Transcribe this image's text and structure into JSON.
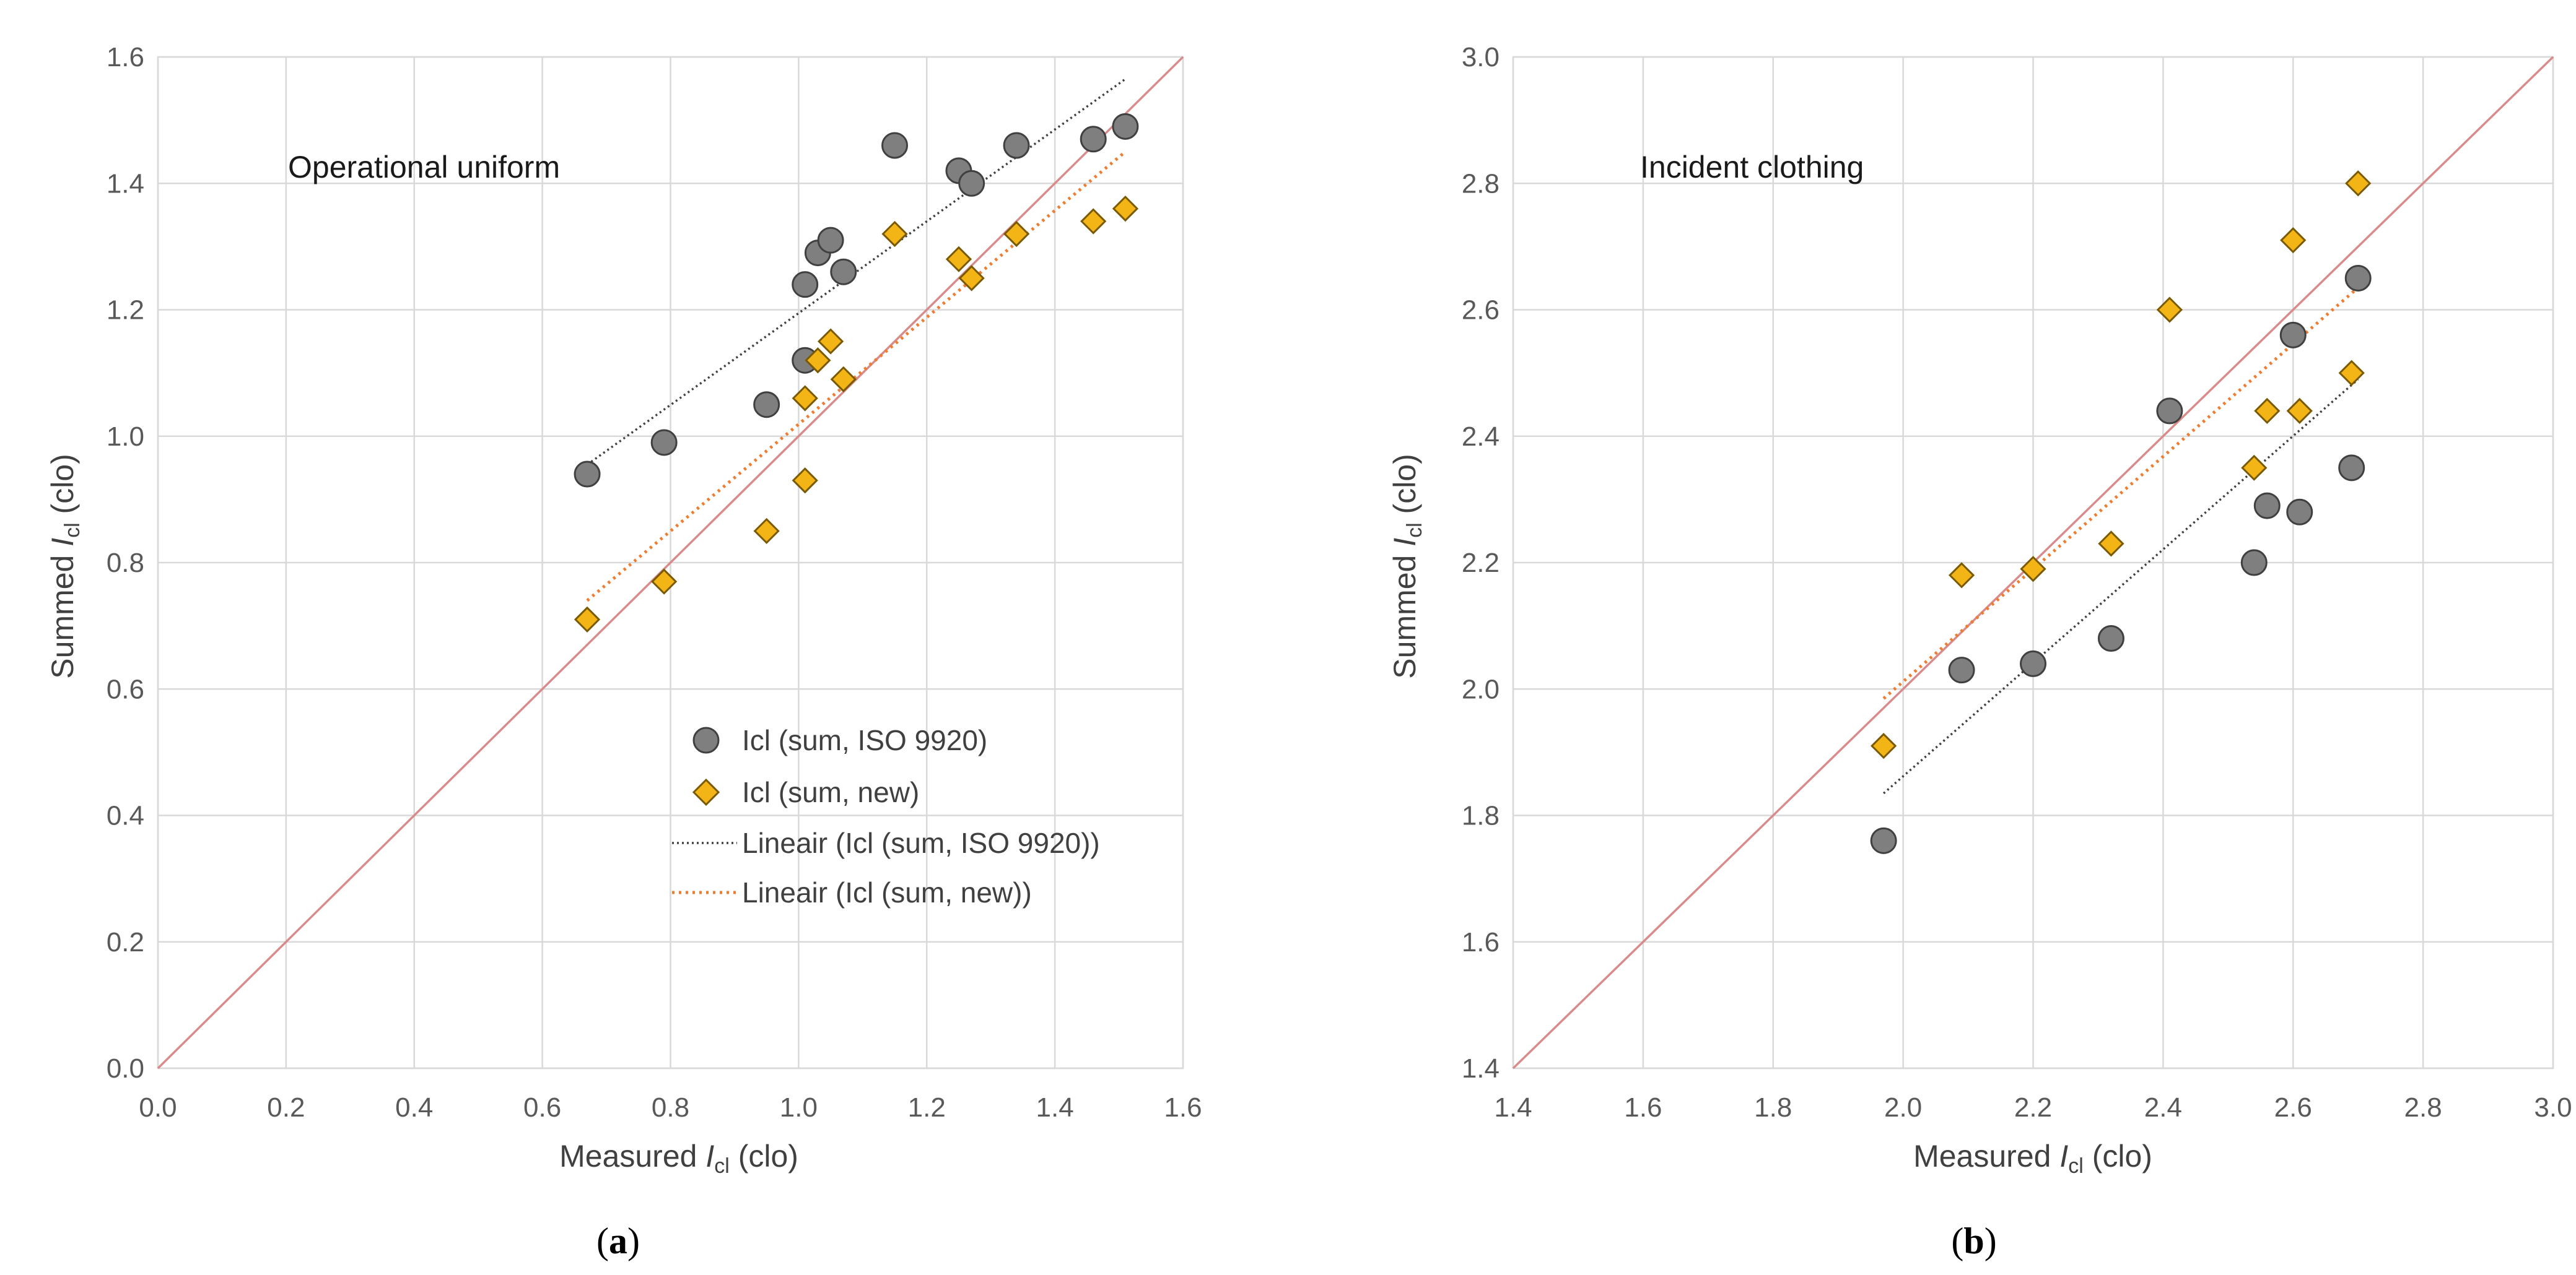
{
  "colors": {
    "iso_marker": "#7f7f7f",
    "iso_marker_edge": "#404040",
    "new_marker": "#f3b415",
    "new_marker_edge": "#7a5a00",
    "iso_trend": "#404040",
    "new_trend": "#ed7d31",
    "identity_line": "#d98b8b",
    "grid": "#d9d9d9"
  },
  "legend": {
    "iso_label": "Icl (sum, ISO 9920)",
    "new_label": "Icl (sum, new)",
    "iso_trend_label": "Lineair (Icl (sum, ISO 9920))",
    "new_trend_label": "Lineair (Icl (sum, new))"
  },
  "chart_data": [
    {
      "type": "scatter",
      "panel_label": "a",
      "title": "Operational uniform",
      "xlabel": {
        "prefix": "Measured ",
        "symbol": "I",
        "sub": "cl",
        "suffix": " (clo)"
      },
      "ylabel": {
        "prefix": "Summed ",
        "symbol": "I",
        "sub": "cl",
        "suffix": " (clo)"
      },
      "xlim": [
        0.0,
        1.6
      ],
      "ylim": [
        0.0,
        1.6
      ],
      "xticks": [
        "0.0",
        "0.2",
        "0.4",
        "0.6",
        "0.8",
        "1.0",
        "1.2",
        "1.4",
        "1.6"
      ],
      "yticks": [
        "0.0",
        "0.2",
        "0.4",
        "0.6",
        "0.8",
        "1.0",
        "1.2",
        "1.4",
        "1.6"
      ],
      "grid": true,
      "legend_position": "bottom-right",
      "identity_line": true,
      "series": [
        {
          "name": "Icl (sum, ISO 9920)",
          "marker": "circle",
          "points": [
            [
              0.67,
              0.94
            ],
            [
              0.79,
              0.99
            ],
            [
              0.95,
              1.05
            ],
            [
              1.01,
              1.12
            ],
            [
              1.01,
              1.24
            ],
            [
              1.03,
              1.29
            ],
            [
              1.05,
              1.31
            ],
            [
              1.07,
              1.26
            ],
            [
              1.15,
              1.46
            ],
            [
              1.25,
              1.42
            ],
            [
              1.27,
              1.4
            ],
            [
              1.34,
              1.46
            ],
            [
              1.46,
              1.47
            ],
            [
              1.51,
              1.49
            ]
          ],
          "trend": [
            [
              0.67,
              0.955
            ],
            [
              1.51,
              1.565
            ]
          ]
        },
        {
          "name": "Icl (sum, new)",
          "marker": "diamond",
          "points": [
            [
              0.67,
              0.71
            ],
            [
              0.79,
              0.77
            ],
            [
              0.95,
              0.85
            ],
            [
              1.01,
              0.93
            ],
            [
              1.01,
              1.06
            ],
            [
              1.03,
              1.12
            ],
            [
              1.05,
              1.15
            ],
            [
              1.07,
              1.09
            ],
            [
              1.15,
              1.32
            ],
            [
              1.25,
              1.28
            ],
            [
              1.27,
              1.25
            ],
            [
              1.34,
              1.32
            ],
            [
              1.46,
              1.34
            ],
            [
              1.51,
              1.36
            ]
          ],
          "trend": [
            [
              0.67,
              0.74
            ],
            [
              1.51,
              1.45
            ]
          ]
        }
      ]
    },
    {
      "type": "scatter",
      "panel_label": "b",
      "title": "Incident clothing",
      "xlabel": {
        "prefix": "Measured ",
        "symbol": "I",
        "sub": "cl",
        "suffix": " (clo)"
      },
      "ylabel": {
        "prefix": "Summed ",
        "symbol": "I",
        "sub": "cl",
        "suffix": " (clo)"
      },
      "xlim": [
        1.4,
        3.0
      ],
      "ylim": [
        1.4,
        3.0
      ],
      "xticks": [
        "1.4",
        "1.6",
        "1.8",
        "2.0",
        "2.2",
        "2.4",
        "2.6",
        "2.8",
        "3.0"
      ],
      "yticks": [
        "1.4",
        "1.6",
        "1.8",
        "2.0",
        "2.2",
        "2.4",
        "2.6",
        "2.8",
        "3.0"
      ],
      "grid": true,
      "identity_line": true,
      "series": [
        {
          "name": "Icl (sum, ISO 9920)",
          "marker": "circle",
          "points": [
            [
              1.97,
              1.76
            ],
            [
              2.09,
              2.03
            ],
            [
              2.2,
              2.04
            ],
            [
              2.32,
              2.08
            ],
            [
              2.41,
              2.44
            ],
            [
              2.54,
              2.2
            ],
            [
              2.56,
              2.29
            ],
            [
              2.6,
              2.56
            ],
            [
              2.61,
              2.28
            ],
            [
              2.69,
              2.35
            ],
            [
              2.7,
              2.65
            ]
          ],
          "trend": [
            [
              1.97,
              1.835
            ],
            [
              2.7,
              2.49
            ]
          ]
        },
        {
          "name": "Icl (sum, new)",
          "marker": "diamond",
          "points": [
            [
              1.97,
              1.91
            ],
            [
              2.09,
              2.18
            ],
            [
              2.2,
              2.19
            ],
            [
              2.32,
              2.23
            ],
            [
              2.41,
              2.6
            ],
            [
              2.54,
              2.35
            ],
            [
              2.56,
              2.44
            ],
            [
              2.6,
              2.71
            ],
            [
              2.61,
              2.44
            ],
            [
              2.69,
              2.5
            ],
            [
              2.7,
              2.8
            ]
          ],
          "trend": [
            [
              1.97,
              1.985
            ],
            [
              2.7,
              2.635
            ]
          ]
        }
      ]
    }
  ]
}
